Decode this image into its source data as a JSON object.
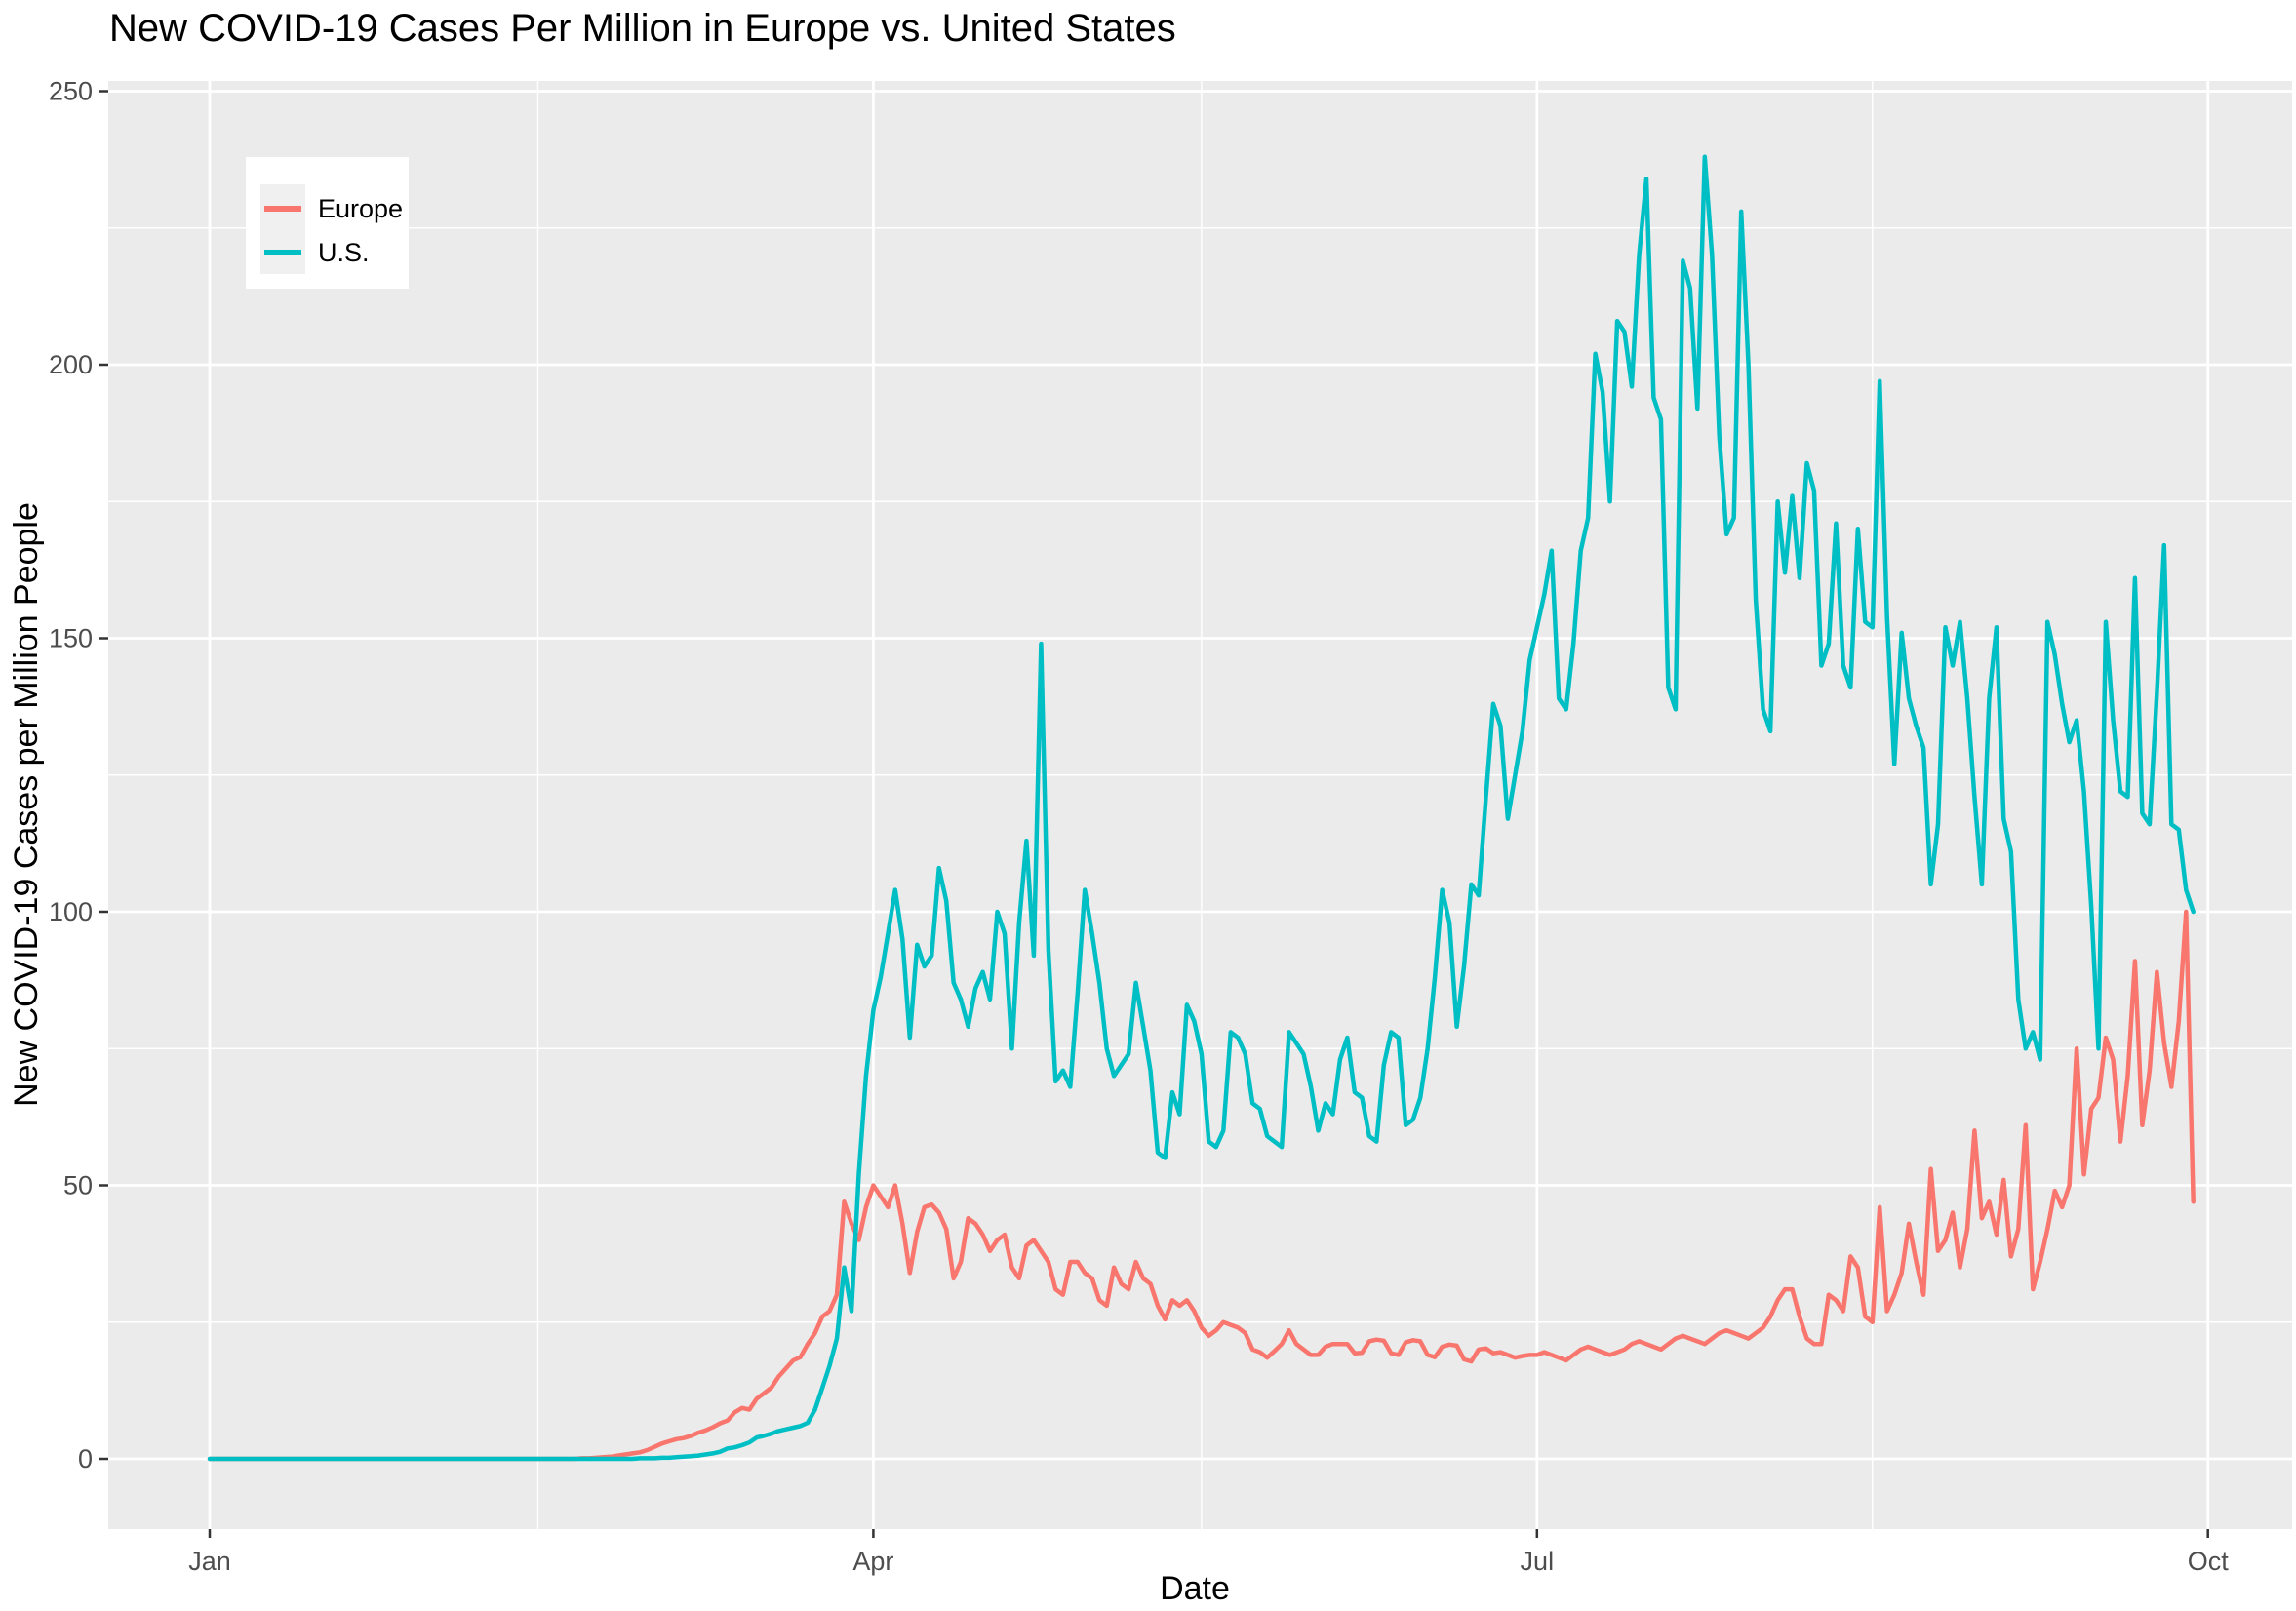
{
  "title": "New COVID-19 Cases Per Million in Europe vs. United States",
  "colors": {
    "background": "#FFFFFF",
    "panel": "#EBEBEB",
    "gridline": "#FFFFFF",
    "tick_text": "#4D4D4D",
    "tick_mark": "#333333",
    "europe": "#F8766D",
    "us": "#00BFC4",
    "legend_bg": "#FFFFFF",
    "legend_key_bg": "#F0F0F0"
  },
  "legend": {
    "items": [
      {
        "label": "Europe",
        "color": "#F8766D"
      },
      {
        "label": "U.S.",
        "color": "#00BFC4"
      }
    ]
  },
  "chart_data": {
    "type": "line",
    "title": "New COVID-19 Cases Per Million in Europe vs. United States",
    "xlabel": "Date",
    "ylabel": "New COVID-19 Cases per Million People",
    "grid": true,
    "legend_position": "top-left-inside",
    "x_axis": {
      "unit": "days since Jan 1, 2020",
      "start_day": 0,
      "end_day": 272,
      "tick_days": [
        0,
        91,
        182,
        274
      ],
      "tick_labels": [
        "Jan",
        "Apr",
        "Jul",
        "Oct"
      ],
      "minor_tick_days": [
        45,
        136,
        228
      ]
    },
    "y_axis": {
      "range": [
        0,
        250
      ],
      "ticks": [
        0,
        50,
        100,
        150,
        200,
        250
      ],
      "minor_ticks": [
        25,
        75,
        125,
        175,
        225
      ]
    },
    "series": [
      {
        "name": "Europe",
        "color": "#F8766D",
        "values": [
          0,
          0,
          0,
          0,
          0,
          0,
          0,
          0,
          0,
          0,
          0,
          0,
          0,
          0,
          0,
          0,
          0,
          0,
          0,
          0,
          0,
          0,
          0,
          0,
          0,
          0,
          0,
          0,
          0,
          0,
          0,
          0,
          0,
          0,
          0,
          0,
          0,
          0,
          0,
          0,
          0,
          0,
          0,
          0,
          0,
          0,
          0,
          0,
          0,
          0,
          0,
          0.1,
          0.1,
          0.2,
          0.3,
          0.4,
          0.6,
          0.8,
          1.0,
          1.2,
          1.6,
          2.2,
          2.8,
          3.2,
          3.6,
          3.8,
          4.2,
          4.8,
          5.2,
          5.8,
          6.5,
          7,
          8.5,
          9.3,
          9,
          11,
          12,
          13,
          15,
          16.5,
          18,
          18.6,
          21,
          23,
          26,
          27,
          30,
          47,
          43,
          40,
          46,
          50,
          48,
          46,
          50,
          43,
          34,
          41.5,
          46,
          46.5,
          45,
          42,
          33,
          36,
          44,
          43,
          41,
          38,
          40,
          41,
          35,
          33,
          39,
          40,
          38,
          36,
          31,
          30,
          36,
          36,
          34,
          33,
          29,
          28,
          35,
          32,
          31,
          36,
          33,
          32,
          28,
          25.5,
          29,
          28,
          29,
          27,
          24,
          22.5,
          23.5,
          25,
          24.5,
          24,
          23,
          20,
          19.5,
          18.5,
          19.7,
          21,
          23.5,
          21,
          20,
          19,
          19,
          20.5,
          21,
          21,
          21,
          19.3,
          19.4,
          21.5,
          21.8,
          21.6,
          19.3,
          19,
          21.3,
          21.7,
          21.5,
          19,
          18.6,
          20.5,
          20.9,
          20.7,
          18.2,
          17.8,
          20,
          20.2,
          19.3,
          19.5,
          19,
          18.5,
          18.8,
          19,
          19,
          19.5,
          19,
          18.5,
          18,
          19,
          20,
          20.5,
          20,
          19.5,
          19,
          19.5,
          20,
          21,
          21.5,
          21,
          20.5,
          20,
          21,
          22,
          22.5,
          22,
          21.5,
          21,
          22,
          23,
          23.5,
          23,
          22.5,
          22,
          23,
          24,
          26,
          29,
          31,
          31,
          26,
          22,
          21,
          21,
          30,
          29,
          27,
          37,
          35,
          26,
          25,
          46,
          27,
          30,
          34,
          43,
          36,
          30,
          53,
          38,
          40,
          45,
          35,
          42,
          60,
          44,
          47,
          41,
          51,
          37,
          42,
          61,
          31,
          36,
          42,
          49,
          46,
          50,
          75,
          52,
          64,
          66,
          77,
          73,
          58,
          70,
          91,
          61,
          71,
          89,
          76,
          68,
          80,
          100,
          47
        ]
      },
      {
        "name": "U.S.",
        "color": "#00BFC4",
        "values": [
          0,
          0,
          0,
          0,
          0,
          0,
          0,
          0,
          0,
          0,
          0,
          0,
          0,
          0,
          0,
          0,
          0,
          0,
          0,
          0,
          0,
          0,
          0,
          0,
          0,
          0,
          0,
          0,
          0,
          0,
          0,
          0,
          0,
          0,
          0,
          0,
          0,
          0,
          0,
          0,
          0,
          0,
          0,
          0,
          0,
          0,
          0,
          0,
          0,
          0,
          0,
          0,
          0,
          0,
          0,
          0,
          0,
          0,
          0,
          0.1,
          0.1,
          0.1,
          0.2,
          0.2,
          0.3,
          0.4,
          0.5,
          0.6,
          0.8,
          1.0,
          1.3,
          1.9,
          2.1,
          2.5,
          3.0,
          3.9,
          4.2,
          4.6,
          5.1,
          5.4,
          5.7,
          6.0,
          6.6,
          9,
          13,
          17,
          22,
          35,
          27,
          52,
          70,
          82,
          88,
          96,
          104,
          95,
          77,
          94,
          90,
          92,
          108,
          102,
          87,
          84,
          79,
          86,
          89,
          84,
          100,
          96,
          75,
          98,
          113,
          92,
          149,
          93,
          69,
          71,
          68,
          85,
          104,
          96,
          87,
          75,
          70,
          72,
          74,
          87,
          79,
          71,
          56,
          55,
          67,
          63,
          83,
          80,
          74,
          58,
          57,
          60,
          78,
          77,
          74,
          65,
          64,
          59,
          58,
          57,
          78,
          76,
          74,
          68,
          60,
          65,
          63,
          73,
          77,
          67,
          66,
          59,
          58,
          72,
          78,
          77,
          61,
          62,
          66,
          75,
          88,
          104,
          98,
          79,
          90,
          105,
          103,
          121,
          138,
          134,
          117,
          125,
          133,
          146,
          152,
          158,
          166,
          139,
          137,
          149,
          166,
          172,
          202,
          195,
          175,
          208,
          206,
          196,
          220,
          234,
          194,
          190,
          141,
          137,
          219,
          214,
          192,
          238,
          220,
          187,
          169,
          172,
          228,
          200,
          157,
          137,
          133,
          175,
          162,
          176,
          161,
          182,
          177,
          145,
          149,
          171,
          145,
          141,
          170,
          153,
          152,
          197,
          154,
          127,
          151,
          139,
          134,
          130,
          105,
          116,
          152,
          145,
          153,
          139,
          121,
          105,
          139,
          152,
          117,
          111,
          84,
          75,
          78,
          73,
          153,
          147,
          138,
          131,
          135,
          122,
          101,
          75,
          153,
          135,
          122,
          121,
          161,
          118,
          116,
          140,
          167,
          116,
          115,
          104,
          100
        ]
      }
    ]
  }
}
